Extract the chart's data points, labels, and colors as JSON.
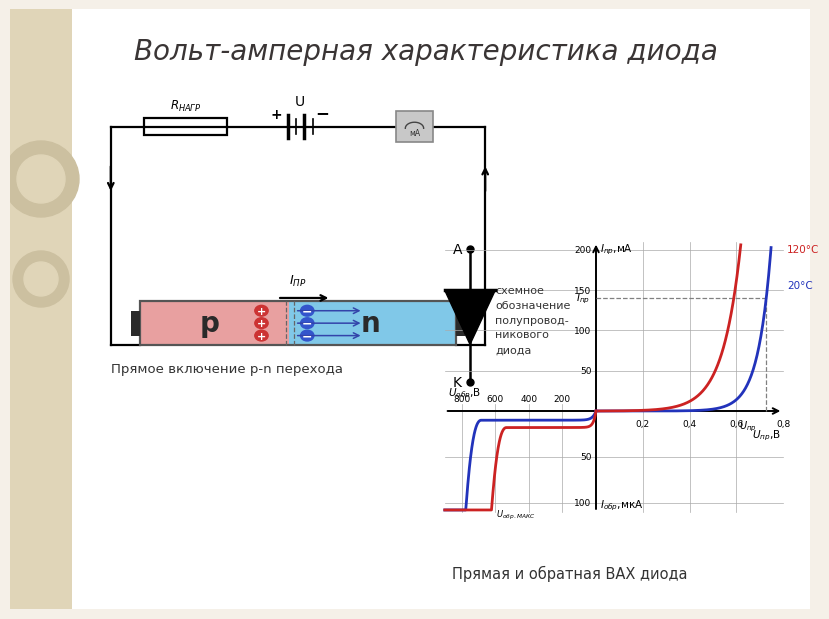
{
  "title": "Вольт-амперная характеристика диода",
  "title_fontsize": 20,
  "bg_color": "#f5f0e8",
  "bg_left_color": "#e0d5b8",
  "circuit_caption": "Прямое включение p-n перехода",
  "graph_caption": "Прямая и обратная ВАХ диода",
  "diode_label_text": "схемное\nобозначение\nполупровод-\nникового\nдиода",
  "temp_120": "120°C",
  "temp_20": "20°C",
  "color_20C": "#2233bb",
  "color_120C": "#cc2222",
  "p_color": "#e8a0a0",
  "n_color": "#80c8e8",
  "charge_plus_color": "#cc3333",
  "charge_minus_color": "#3355cc",
  "arrow_color": "#3344aa"
}
